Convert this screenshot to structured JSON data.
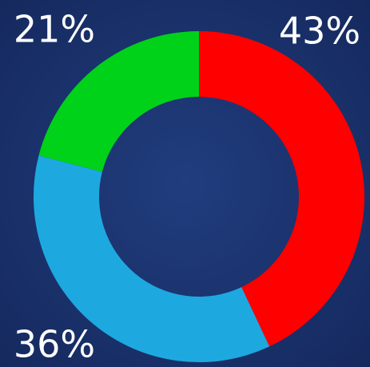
{
  "chart_data": {
    "type": "donut",
    "values": [
      43,
      36,
      21
    ],
    "value_labels": [
      "43%",
      "36%",
      "21%"
    ],
    "colors": [
      "#ff0000",
      "#1ea8e0",
      "#00d21a"
    ]
  }
}
